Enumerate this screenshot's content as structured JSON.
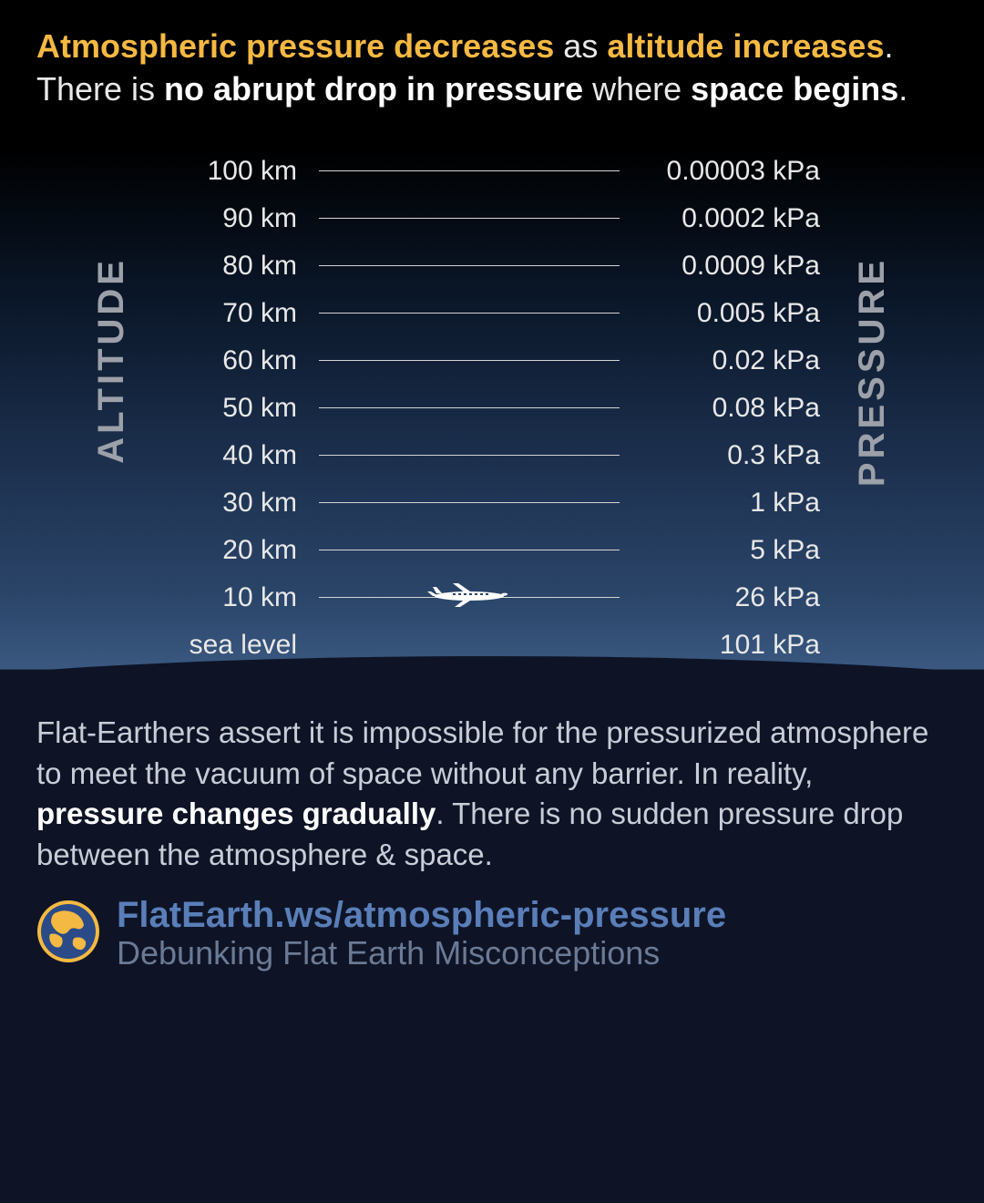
{
  "header": {
    "line1_p1": "Atmospheric pressure decreases",
    "line1_p2": " as ",
    "line1_p3": "altitude increases",
    "line1_p4": ".",
    "line2_p1": "There is ",
    "line2_p2": "no abrupt drop in pressure",
    "line2_p3": " where ",
    "line2_p4": "space begins",
    "line2_p5": "."
  },
  "chart": {
    "type": "table",
    "left_axis_label": "ALTITUDE",
    "right_axis_label": "PRESSURE",
    "line_color": "#d4d4d4",
    "text_color": "#e8e8e8",
    "label_color": "#9ca0a8",
    "label_fontsize": 40,
    "row_fontsize": 30,
    "rows": [
      {
        "altitude": "100 km",
        "pressure": "0.00003 kPa",
        "has_plane": false
      },
      {
        "altitude": "90 km",
        "pressure": "0.0002 kPa",
        "has_plane": false
      },
      {
        "altitude": "80 km",
        "pressure": "0.0009 kPa",
        "has_plane": false
      },
      {
        "altitude": "70 km",
        "pressure": "0.005 kPa",
        "has_plane": false
      },
      {
        "altitude": "60 km",
        "pressure": "0.02 kPa",
        "has_plane": false
      },
      {
        "altitude": "50 km",
        "pressure": "0.08 kPa",
        "has_plane": false
      },
      {
        "altitude": "40 km",
        "pressure": "0.3 kPa",
        "has_plane": false
      },
      {
        "altitude": "30 km",
        "pressure": "1 kPa",
        "has_plane": false
      },
      {
        "altitude": "20 km",
        "pressure": "5 kPa",
        "has_plane": false
      },
      {
        "altitude": "10 km",
        "pressure": "26 kPa",
        "has_plane": true
      },
      {
        "altitude": "sea level",
        "pressure": "101 kPa",
        "has_plane": false,
        "no_line": true
      }
    ],
    "airplane_color": "#ffffff"
  },
  "body": {
    "p1": "Flat-Earthers assert it is impossible for the pressurized atmosphere to meet the vacuum of space without any barrier. In reality, ",
    "p2": "pressure changes gradually",
    "p3": ". There is no sudden pressure drop between the atmosphere & space."
  },
  "footer": {
    "url": "FlatEarth.ws/atmospheric-pressure",
    "tagline": "Debunking Flat Earth Misconceptions",
    "url_color": "#5a7eb8",
    "tagline_color": "#6b7a95",
    "logo_bg": "#f4b942",
    "logo_fg": "#2a4a88"
  },
  "colors": {
    "gradient_top": "#000000",
    "gradient_mid": "#2a4468",
    "gradient_bottom": "#0e1426",
    "accent_yellow": "#f4b942"
  }
}
